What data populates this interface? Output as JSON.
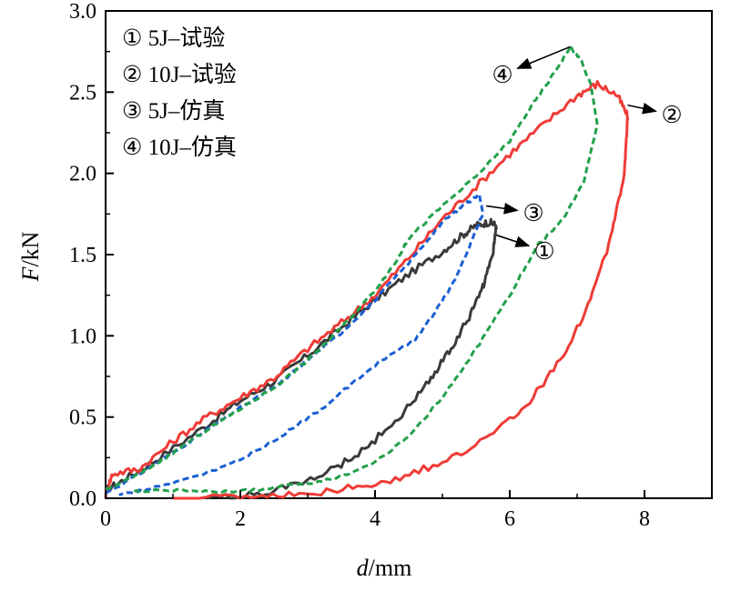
{
  "chart_data": {
    "type": "line",
    "xlabel_italic": "d",
    "xlabel_rest": "/mm",
    "ylabel_italic": "F",
    "ylabel_rest": "/kN",
    "xlim": [
      0,
      9
    ],
    "ylim": [
      0,
      3.0
    ],
    "xticks": [
      0,
      2,
      4,
      6,
      8
    ],
    "xtick_labels": [
      "0",
      "2",
      "4",
      "6",
      "8"
    ],
    "yticks": [
      0.0,
      0.5,
      1.0,
      1.5,
      2.0,
      2.5,
      3.0
    ],
    "ytick_labels": [
      "0.0",
      "0.5",
      "1.0",
      "1.5",
      "2.0",
      "2.5",
      "3.0"
    ],
    "grid": false,
    "legend_position": "top-left",
    "legend": [
      {
        "marker": "①",
        "label": "5J–试验"
      },
      {
        "marker": "②",
        "label": "10J–试验"
      },
      {
        "marker": "③",
        "label": "5J–仿真"
      },
      {
        "marker": "④",
        "label": "10J–仿真"
      }
    ],
    "series": [
      {
        "marker": "①",
        "style": "solid",
        "color": "#3a3a3a",
        "points": [
          [
            0.0,
            0.05
          ],
          [
            0.3,
            0.12
          ],
          [
            0.8,
            0.25
          ],
          [
            1.5,
            0.45
          ],
          [
            2.0,
            0.6
          ],
          [
            2.5,
            0.72
          ],
          [
            3.0,
            0.88
          ],
          [
            3.5,
            1.05
          ],
          [
            4.0,
            1.22
          ],
          [
            4.5,
            1.38
          ],
          [
            5.0,
            1.52
          ],
          [
            5.3,
            1.62
          ],
          [
            5.5,
            1.68
          ],
          [
            5.7,
            1.7
          ],
          [
            5.8,
            1.68
          ],
          [
            5.75,
            1.5
          ],
          [
            5.6,
            1.3
          ],
          [
            5.4,
            1.12
          ],
          [
            5.1,
            0.9
          ],
          [
            4.8,
            0.72
          ],
          [
            4.4,
            0.52
          ],
          [
            3.9,
            0.32
          ],
          [
            3.4,
            0.18
          ],
          [
            2.8,
            0.08
          ],
          [
            2.2,
            0.02
          ],
          [
            1.5,
            0.0
          ]
        ]
      },
      {
        "marker": "②",
        "style": "solid",
        "color": "#ef3b36",
        "points": [
          [
            0.0,
            0.02
          ],
          [
            0.1,
            0.15
          ],
          [
            0.5,
            0.18
          ],
          [
            1.0,
            0.35
          ],
          [
            1.5,
            0.5
          ],
          [
            2.0,
            0.62
          ],
          [
            2.5,
            0.74
          ],
          [
            3.0,
            0.92
          ],
          [
            3.5,
            1.08
          ],
          [
            4.0,
            1.25
          ],
          [
            4.5,
            1.48
          ],
          [
            5.0,
            1.72
          ],
          [
            5.5,
            1.92
          ],
          [
            6.0,
            2.12
          ],
          [
            6.5,
            2.3
          ],
          [
            7.0,
            2.48
          ],
          [
            7.3,
            2.55
          ],
          [
            7.6,
            2.48
          ],
          [
            7.75,
            2.35
          ],
          [
            7.7,
            2.0
          ],
          [
            7.5,
            1.6
          ],
          [
            7.2,
            1.22
          ],
          [
            6.8,
            0.88
          ],
          [
            6.3,
            0.6
          ],
          [
            5.7,
            0.38
          ],
          [
            5.0,
            0.22
          ],
          [
            4.3,
            0.12
          ],
          [
            3.6,
            0.06
          ],
          [
            2.8,
            0.02
          ],
          [
            2.0,
            0.01
          ],
          [
            1.0,
            0.0
          ]
        ]
      },
      {
        "marker": "③",
        "style": "dashed",
        "color": "#1a5fd4",
        "points": [
          [
            0.0,
            0.03
          ],
          [
            0.5,
            0.15
          ],
          [
            1.0,
            0.28
          ],
          [
            1.5,
            0.42
          ],
          [
            2.0,
            0.56
          ],
          [
            2.5,
            0.68
          ],
          [
            3.0,
            0.85
          ],
          [
            3.5,
            1.02
          ],
          [
            4.0,
            1.22
          ],
          [
            4.5,
            1.45
          ],
          [
            5.0,
            1.7
          ],
          [
            5.3,
            1.8
          ],
          [
            5.55,
            1.87
          ],
          [
            5.6,
            1.75
          ],
          [
            5.4,
            1.55
          ],
          [
            5.2,
            1.35
          ],
          [
            4.9,
            1.15
          ],
          [
            4.6,
            0.98
          ],
          [
            4.2,
            0.88
          ],
          [
            3.7,
            0.72
          ],
          [
            3.2,
            0.55
          ],
          [
            2.6,
            0.38
          ],
          [
            2.0,
            0.24
          ],
          [
            1.4,
            0.14
          ],
          [
            0.8,
            0.07
          ],
          [
            0.2,
            0.02
          ]
        ]
      },
      {
        "marker": "④",
        "style": "dashed",
        "color": "#22a04a",
        "points": [
          [
            0.0,
            0.05
          ],
          [
            0.5,
            0.15
          ],
          [
            1.0,
            0.28
          ],
          [
            1.5,
            0.42
          ],
          [
            2.0,
            0.55
          ],
          [
            2.5,
            0.68
          ],
          [
            3.0,
            0.85
          ],
          [
            3.5,
            1.05
          ],
          [
            4.0,
            1.28
          ],
          [
            4.3,
            1.45
          ],
          [
            4.5,
            1.6
          ],
          [
            5.0,
            1.8
          ],
          [
            5.5,
            1.98
          ],
          [
            6.0,
            2.2
          ],
          [
            6.3,
            2.4
          ],
          [
            6.6,
            2.58
          ],
          [
            6.9,
            2.78
          ],
          [
            7.05,
            2.7
          ],
          [
            7.2,
            2.55
          ],
          [
            7.3,
            2.3
          ],
          [
            7.1,
            1.95
          ],
          [
            6.8,
            1.72
          ],
          [
            6.4,
            1.55
          ],
          [
            6.0,
            1.25
          ],
          [
            5.5,
            0.92
          ],
          [
            5.0,
            0.62
          ],
          [
            4.5,
            0.38
          ],
          [
            4.0,
            0.22
          ],
          [
            3.4,
            0.12
          ],
          [
            2.8,
            0.08
          ],
          [
            2.2,
            0.05
          ],
          [
            1.6,
            0.04
          ],
          [
            1.0,
            0.05
          ],
          [
            0.4,
            0.04
          ]
        ]
      }
    ],
    "callouts": [
      {
        "marker": "①",
        "target": [
          5.8,
          1.62
        ]
      },
      {
        "marker": "②",
        "target": [
          7.75,
          2.42
        ]
      },
      {
        "marker": "③",
        "target": [
          5.65,
          1.8
        ]
      },
      {
        "marker": "④",
        "target": [
          6.9,
          2.78
        ]
      }
    ]
  }
}
